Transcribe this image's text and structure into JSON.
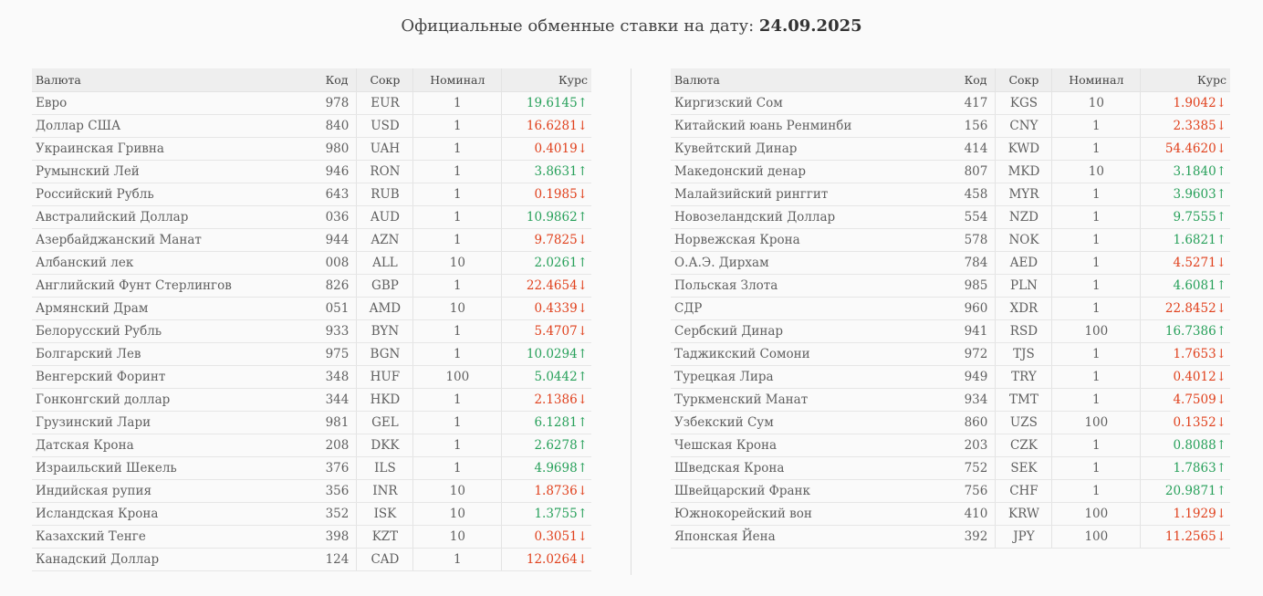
{
  "page": {
    "title_prefix": "Официальные обменные ставки на дату:",
    "date": "24.09.2025"
  },
  "headers": {
    "name": "Валюта",
    "code": "Код",
    "abbr": "Сокр",
    "nominal": "Номинал",
    "rate": "Курс"
  },
  "colors": {
    "up": "#27a05a",
    "down": "#e0401c"
  },
  "left_rows": [
    {
      "name": "Евро",
      "code": "978",
      "abbr": "EUR",
      "nominal": "1",
      "rate": "19.6145",
      "trend": "up"
    },
    {
      "name": "Доллар США",
      "code": "840",
      "abbr": "USD",
      "nominal": "1",
      "rate": "16.6281",
      "trend": "down"
    },
    {
      "name": "Украинская Гривна",
      "code": "980",
      "abbr": "UAH",
      "nominal": "1",
      "rate": "0.4019",
      "trend": "down"
    },
    {
      "name": "Румынский Лей",
      "code": "946",
      "abbr": "RON",
      "nominal": "1",
      "rate": "3.8631",
      "trend": "up"
    },
    {
      "name": "Российский Рубль",
      "code": "643",
      "abbr": "RUB",
      "nominal": "1",
      "rate": "0.1985",
      "trend": "down"
    },
    {
      "name": "Австралийский Доллар",
      "code": "036",
      "abbr": "AUD",
      "nominal": "1",
      "rate": "10.9862",
      "trend": "up"
    },
    {
      "name": "Азербайджанский Манат",
      "code": "944",
      "abbr": "AZN",
      "nominal": "1",
      "rate": "9.7825",
      "trend": "down"
    },
    {
      "name": "Албанский лек",
      "code": "008",
      "abbr": "ALL",
      "nominal": "10",
      "rate": "2.0261",
      "trend": "up"
    },
    {
      "name": "Английский Фунт Стерлингов",
      "code": "826",
      "abbr": "GBP",
      "nominal": "1",
      "rate": "22.4654",
      "trend": "down"
    },
    {
      "name": "Армянский Драм",
      "code": "051",
      "abbr": "AMD",
      "nominal": "10",
      "rate": "0.4339",
      "trend": "down"
    },
    {
      "name": "Белорусский Рубль",
      "code": "933",
      "abbr": "BYN",
      "nominal": "1",
      "rate": "5.4707",
      "trend": "down"
    },
    {
      "name": "Болгарский Лев",
      "code": "975",
      "abbr": "BGN",
      "nominal": "1",
      "rate": "10.0294",
      "trend": "up"
    },
    {
      "name": "Венгерский Форинт",
      "code": "348",
      "abbr": "HUF",
      "nominal": "100",
      "rate": "5.0442",
      "trend": "up"
    },
    {
      "name": "Гонконгский доллар",
      "code": "344",
      "abbr": "HKD",
      "nominal": "1",
      "rate": "2.1386",
      "trend": "down"
    },
    {
      "name": "Грузинский Лари",
      "code": "981",
      "abbr": "GEL",
      "nominal": "1",
      "rate": "6.1281",
      "trend": "up"
    },
    {
      "name": "Датская Крона",
      "code": "208",
      "abbr": "DKK",
      "nominal": "1",
      "rate": "2.6278",
      "trend": "up"
    },
    {
      "name": "Израильский Шекель",
      "code": "376",
      "abbr": "ILS",
      "nominal": "1",
      "rate": "4.9698",
      "trend": "up"
    },
    {
      "name": "Индийская рупия",
      "code": "356",
      "abbr": "INR",
      "nominal": "10",
      "rate": "1.8736",
      "trend": "down"
    },
    {
      "name": "Исландская Крона",
      "code": "352",
      "abbr": "ISK",
      "nominal": "10",
      "rate": "1.3755",
      "trend": "up"
    },
    {
      "name": "Казахский Тенге",
      "code": "398",
      "abbr": "KZT",
      "nominal": "10",
      "rate": "0.3051",
      "trend": "down"
    },
    {
      "name": "Канадский Доллар",
      "code": "124",
      "abbr": "CAD",
      "nominal": "1",
      "rate": "12.0264",
      "trend": "down"
    }
  ],
  "right_rows": [
    {
      "name": "Киргизский Сом",
      "code": "417",
      "abbr": "KGS",
      "nominal": "10",
      "rate": "1.9042",
      "trend": "down"
    },
    {
      "name": "Китайский юань Ренминби",
      "code": "156",
      "abbr": "CNY",
      "nominal": "1",
      "rate": "2.3385",
      "trend": "down"
    },
    {
      "name": "Кувейтский Динар",
      "code": "414",
      "abbr": "KWD",
      "nominal": "1",
      "rate": "54.4620",
      "trend": "down"
    },
    {
      "name": "Македонский денар",
      "code": "807",
      "abbr": "MKD",
      "nominal": "10",
      "rate": "3.1840",
      "trend": "up"
    },
    {
      "name": "Малайзийский ринггит",
      "code": "458",
      "abbr": "MYR",
      "nominal": "1",
      "rate": "3.9603",
      "trend": "up"
    },
    {
      "name": "Новозеландский Доллар",
      "code": "554",
      "abbr": "NZD",
      "nominal": "1",
      "rate": "9.7555",
      "trend": "up"
    },
    {
      "name": "Норвежская Крона",
      "code": "578",
      "abbr": "NOK",
      "nominal": "1",
      "rate": "1.6821",
      "trend": "up"
    },
    {
      "name": "О.А.Э. Дирхам",
      "code": "784",
      "abbr": "AED",
      "nominal": "1",
      "rate": "4.5271",
      "trend": "down"
    },
    {
      "name": "Польская Злота",
      "code": "985",
      "abbr": "PLN",
      "nominal": "1",
      "rate": "4.6081",
      "trend": "up"
    },
    {
      "name": "СДР",
      "code": "960",
      "abbr": "XDR",
      "nominal": "1",
      "rate": "22.8452",
      "trend": "down"
    },
    {
      "name": "Сербский Динар",
      "code": "941",
      "abbr": "RSD",
      "nominal": "100",
      "rate": "16.7386",
      "trend": "up"
    },
    {
      "name": "Таджикский Сомони",
      "code": "972",
      "abbr": "TJS",
      "nominal": "1",
      "rate": "1.7653",
      "trend": "down"
    },
    {
      "name": "Турецкая Лира",
      "code": "949",
      "abbr": "TRY",
      "nominal": "1",
      "rate": "0.4012",
      "trend": "down"
    },
    {
      "name": "Туркменский Манат",
      "code": "934",
      "abbr": "TMT",
      "nominal": "1",
      "rate": "4.7509",
      "trend": "down"
    },
    {
      "name": "Узбекский Сум",
      "code": "860",
      "abbr": "UZS",
      "nominal": "100",
      "rate": "0.1352",
      "trend": "down"
    },
    {
      "name": "Чешская Крона",
      "code": "203",
      "abbr": "CZK",
      "nominal": "1",
      "rate": "0.8088",
      "trend": "up"
    },
    {
      "name": "Шведская Крона",
      "code": "752",
      "abbr": "SEK",
      "nominal": "1",
      "rate": "1.7863",
      "trend": "up"
    },
    {
      "name": "Швейцарский Франк",
      "code": "756",
      "abbr": "CHF",
      "nominal": "1",
      "rate": "20.9871",
      "trend": "up"
    },
    {
      "name": "Южнокорейский вон",
      "code": "410",
      "abbr": "KRW",
      "nominal": "100",
      "rate": "1.1929",
      "trend": "down"
    },
    {
      "name": "Японская Йена",
      "code": "392",
      "abbr": "JPY",
      "nominal": "100",
      "rate": "11.2565",
      "trend": "down"
    }
  ]
}
